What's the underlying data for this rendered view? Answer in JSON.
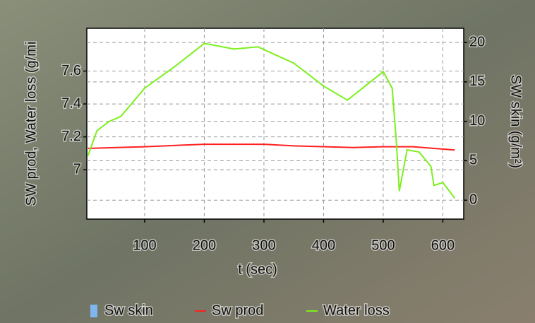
{
  "chart_data": {
    "type": "line",
    "xlabel": "t (sec)",
    "ylabel": "SW prod, Water loss (g/mi",
    "y2label": "SW skin (g/m²)",
    "xlim": [
      3,
      635
    ],
    "xticks": [
      100,
      200,
      300,
      400,
      500,
      600
    ],
    "ylim": [
      6.7,
      7.86
    ],
    "yticks": [
      7,
      7.2,
      7.4,
      7.6
    ],
    "y2lim": [
      -2.4,
      21.8
    ],
    "y2ticks": [
      0,
      5,
      10,
      15,
      20
    ],
    "grid": true,
    "series": [
      {
        "name": "Sw skin",
        "color": "#7fb6f0",
        "axis": "y2",
        "x": [],
        "values": []
      },
      {
        "name": "Sw prod",
        "color": "#ff2020",
        "x": [
          5,
          100,
          200,
          300,
          350,
          450,
          500,
          550,
          620
        ],
        "values": [
          7.13,
          7.14,
          7.155,
          7.155,
          7.145,
          7.135,
          7.14,
          7.14,
          7.12
        ]
      },
      {
        "name": "Water loss",
        "color": "#7cf01c",
        "x": [
          5,
          20,
          40,
          60,
          100,
          150,
          200,
          250,
          290,
          350,
          400,
          440,
          500,
          515,
          522,
          527,
          540,
          560,
          580,
          585,
          600,
          620
        ],
        "values": [
          7.086,
          7.237,
          7.293,
          7.324,
          7.496,
          7.626,
          7.768,
          7.734,
          7.747,
          7.648,
          7.509,
          7.423,
          7.596,
          7.496,
          7.172,
          6.87,
          7.121,
          7.108,
          7.021,
          6.905,
          6.922,
          6.827
        ]
      }
    ]
  }
}
